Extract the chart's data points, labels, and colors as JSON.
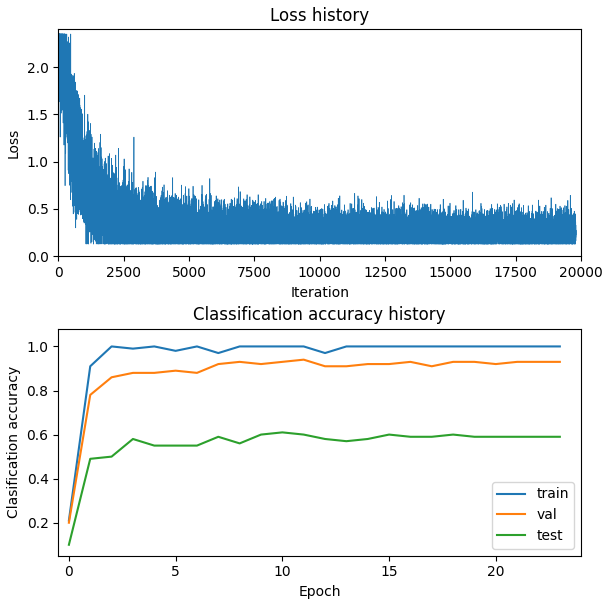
{
  "loss_title": "Loss history",
  "loss_xlabel": "Iteration",
  "loss_ylabel": "Loss",
  "loss_color": "#1f77b4",
  "loss_n": 19800,
  "loss_xlim": [
    0,
    20000
  ],
  "loss_ylim": [
    0,
    2.4
  ],
  "loss_yticks": [
    0.0,
    0.5,
    1.0,
    1.5,
    2.0
  ],
  "loss_xticks": [
    0,
    2500,
    5000,
    7500,
    10000,
    12500,
    15000,
    17500,
    20000
  ],
  "acc_title": "Classification accuracy history",
  "acc_xlabel": "Epoch",
  "acc_ylabel": "Clasification accuracy",
  "acc_xlim": [
    -0.5,
    24
  ],
  "acc_ylim": [
    0.05,
    1.08
  ],
  "acc_xticks": [
    0,
    5,
    10,
    15,
    20
  ],
  "acc_yticks": [
    0.2,
    0.4,
    0.6,
    0.8,
    1.0
  ],
  "train_color": "#1f77b4",
  "val_color": "#ff7f0e",
  "test_color": "#2ca02c",
  "train_data": [
    0.21,
    0.91,
    1.0,
    0.99,
    1.0,
    0.98,
    1.0,
    0.97,
    1.0,
    1.0,
    1.0,
    1.0,
    0.97,
    1.0,
    1.0,
    1.0,
    1.0,
    1.0,
    1.0,
    1.0,
    1.0,
    1.0,
    1.0,
    1.0
  ],
  "val_data": [
    0.2,
    0.78,
    0.86,
    0.88,
    0.88,
    0.89,
    0.88,
    0.92,
    0.93,
    0.92,
    0.93,
    0.94,
    0.91,
    0.91,
    0.92,
    0.92,
    0.93,
    0.91,
    0.93,
    0.93,
    0.92,
    0.93,
    0.93,
    0.93
  ],
  "test_data": [
    0.1,
    0.49,
    0.5,
    0.58,
    0.55,
    0.55,
    0.55,
    0.59,
    0.56,
    0.6,
    0.61,
    0.6,
    0.58,
    0.57,
    0.58,
    0.6,
    0.59,
    0.59,
    0.6,
    0.59,
    0.59,
    0.59,
    0.59,
    0.59
  ],
  "fig_width": 6.1,
  "fig_height": 6.06,
  "dpi": 100
}
